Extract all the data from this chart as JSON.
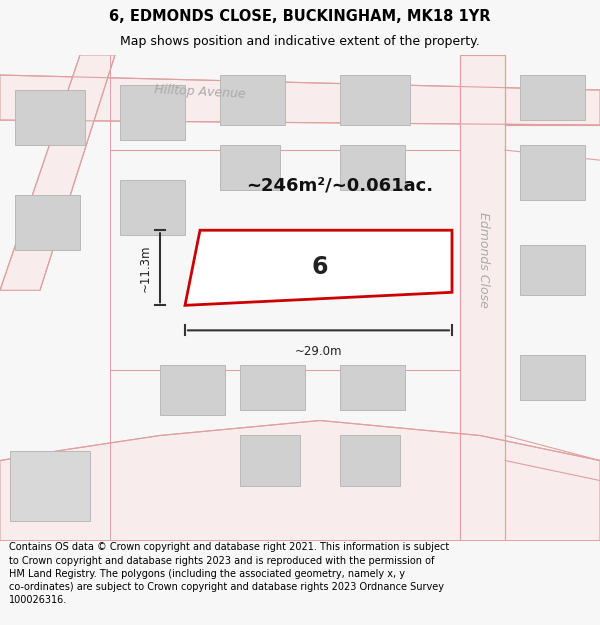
{
  "title": "6, EDMONDS CLOSE, BUCKINGHAM, MK18 1YR",
  "subtitle": "Map shows position and indicative extent of the property.",
  "area_text": "~246m²/~0.061ac.",
  "plot_number": "6",
  "width_label": "~29.0m",
  "height_label": "~11.3m",
  "footer": "Contains OS data © Crown copyright and database right 2021. This information is subject to Crown copyright and database rights 2023 and is reproduced with the permission of HM Land Registry. The polygons (including the associated geometry, namely x, y co-ordinates) are subject to Crown copyright and database rights 2023 Ordnance Survey 100026316.",
  "bg_color": "#f7f7f7",
  "map_bg": "#ffffff",
  "road_fill": "#f5e0e0",
  "road_edge": "#e0a0a0",
  "building_color": "#d0d0d0",
  "building_edge": "#b8b8b8",
  "plot_color": "#cc0000",
  "plot_fill": "#ffffff",
  "label_color": "#aaaaaa",
  "title_fontsize": 10.5,
  "subtitle_fontsize": 9,
  "footer_fontsize": 7.0,
  "area_fontsize": 13,
  "plot_num_fontsize": 17,
  "meas_fontsize": 8.5,
  "street_fontsize": 9
}
